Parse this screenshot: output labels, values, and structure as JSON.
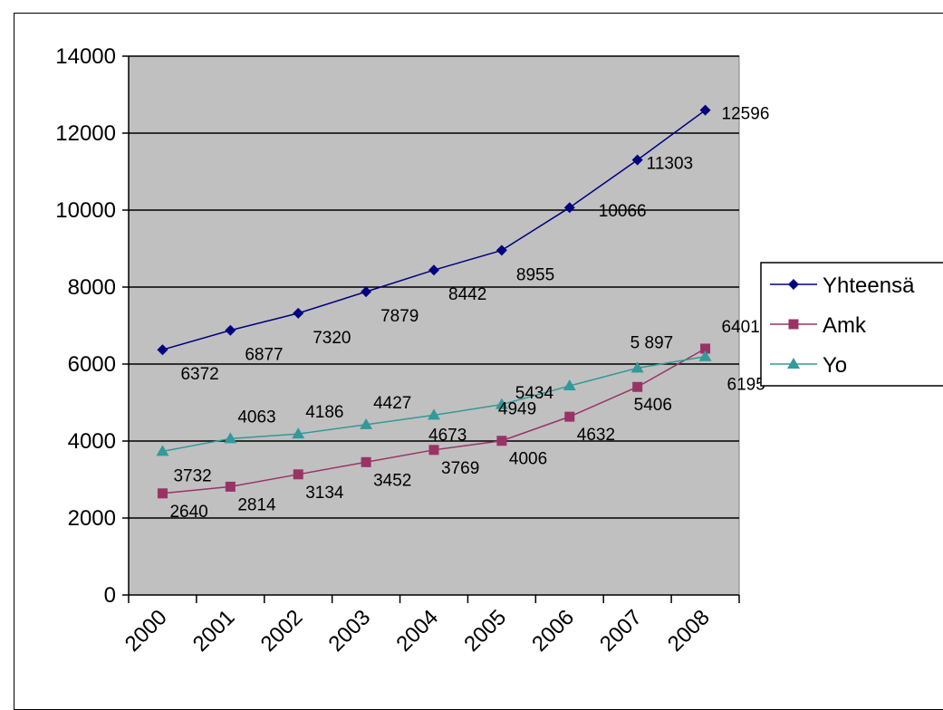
{
  "chart_data": {
    "type": "line",
    "categories": [
      "2000",
      "2001",
      "2002",
      "2003",
      "2004",
      "2005",
      "2006",
      "2007",
      "2008"
    ],
    "ylim": [
      0,
      14000
    ],
    "yticks": [
      "0",
      "2000",
      "4000",
      "6000",
      "8000",
      "10000",
      "12000",
      "14000"
    ],
    "grid": true,
    "plot_background": "#c0c0c0",
    "legend_position": "right",
    "series": [
      {
        "name": "Yhteensä",
        "color": "#000080",
        "marker": "diamond",
        "values": [
          6372,
          6877,
          7320,
          7879,
          8442,
          8955,
          10066,
          11303,
          12596
        ],
        "labels": [
          "6372",
          "6877",
          "7320",
          "7879",
          "8442",
          "8955",
          "10066",
          "11303",
          "12596"
        ]
      },
      {
        "name": "Amk",
        "color": "#993366",
        "marker": "square",
        "values": [
          2640,
          2814,
          3134,
          3452,
          3769,
          4006,
          4632,
          5406,
          6401
        ],
        "labels": [
          "2640",
          "2814",
          "3134",
          "3452",
          "3769",
          "4006",
          "4632",
          "5406",
          "6401"
        ]
      },
      {
        "name": "Yo",
        "color": "#339999",
        "marker": "triangle",
        "values": [
          3732,
          4063,
          4186,
          4427,
          4673,
          4949,
          5434,
          5897,
          6195
        ],
        "labels": [
          "3732",
          "4063",
          "4186",
          "4427",
          "4673",
          "4949",
          "5434",
          "5 897",
          "6195"
        ]
      }
    ]
  }
}
